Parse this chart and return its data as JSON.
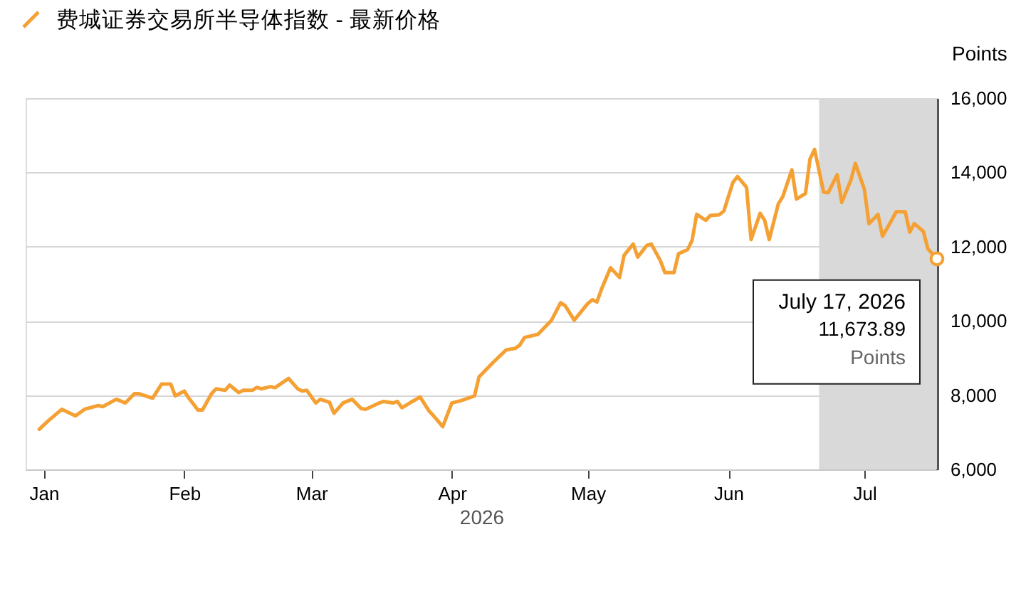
{
  "chart_data": {
    "type": "line",
    "xlabel": "2026",
    "ylabel": "Points",
    "x": [
      "2025-12-31",
      "2026-01-02",
      "2026-01-05",
      "2026-01-08",
      "2026-01-10",
      "2026-01-13",
      "2026-01-14",
      "2026-01-17",
      "2026-01-19",
      "2026-01-21",
      "2026-01-22",
      "2026-01-25",
      "2026-01-27",
      "2026-01-29",
      "2026-01-30",
      "2026-02-01",
      "2026-02-02",
      "2026-02-04",
      "2026-02-05",
      "2026-02-07",
      "2026-02-08",
      "2026-02-10",
      "2026-02-11",
      "2026-02-13",
      "2026-02-14",
      "2026-02-16",
      "2026-02-17",
      "2026-02-18",
      "2026-02-20",
      "2026-02-21",
      "2026-02-24",
      "2026-02-26",
      "2026-02-27",
      "2026-02-28",
      "2026-03-02",
      "2026-03-03",
      "2026-03-05",
      "2026-03-06",
      "2026-03-08",
      "2026-03-10",
      "2026-03-12",
      "2026-03-13",
      "2026-03-16",
      "2026-03-17",
      "2026-03-19",
      "2026-03-20",
      "2026-03-21",
      "2026-03-23",
      "2026-03-25",
      "2026-03-27",
      "2026-03-28",
      "2026-03-30",
      "2026-04-01",
      "2026-04-03",
      "2026-04-06",
      "2026-04-07",
      "2026-04-10",
      "2026-04-13",
      "2026-04-15",
      "2026-04-16",
      "2026-04-17",
      "2026-04-20",
      "2026-04-23",
      "2026-04-25",
      "2026-04-26",
      "2026-04-28",
      "2026-05-01",
      "2026-05-02",
      "2026-05-03",
      "2026-05-04",
      "2026-05-06",
      "2026-05-08",
      "2026-05-09",
      "2026-05-11",
      "2026-05-12",
      "2026-05-14",
      "2026-05-15",
      "2026-05-17",
      "2026-05-18",
      "2026-05-20",
      "2026-05-21",
      "2026-05-23",
      "2026-05-24",
      "2026-05-25",
      "2026-05-27",
      "2026-05-28",
      "2026-05-30",
      "2026-05-31",
      "2026-06-02",
      "2026-06-03",
      "2026-06-05",
      "2026-06-06",
      "2026-06-08",
      "2026-06-09",
      "2026-06-10",
      "2026-06-12",
      "2026-06-13",
      "2026-06-15",
      "2026-06-16",
      "2026-06-18",
      "2026-06-19",
      "2026-06-20",
      "2026-06-22",
      "2026-06-23",
      "2026-06-25",
      "2026-06-26",
      "2026-06-28",
      "2026-06-29",
      "2026-07-01",
      "2026-07-02",
      "2026-07-04",
      "2026-07-05",
      "2026-07-07",
      "2026-07-08",
      "2026-07-10",
      "2026-07-11",
      "2026-07-12",
      "2026-07-14",
      "2026-07-15",
      "2026-07-17"
    ],
    "series": [
      {
        "name": "费城证券交易所半导体指数 - 最新价格",
        "color": "#f5a033",
        "values": [
          7080,
          7310,
          7620,
          7440,
          7620,
          7720,
          7690,
          7890,
          7790,
          8040,
          8040,
          7920,
          8300,
          8300,
          7980,
          8110,
          7920,
          7600,
          7600,
          8040,
          8170,
          8130,
          8270,
          8070,
          8130,
          8130,
          8210,
          8170,
          8230,
          8200,
          8450,
          8170,
          8110,
          8130,
          7790,
          7890,
          7810,
          7510,
          7790,
          7890,
          7640,
          7620,
          7790,
          7830,
          7790,
          7830,
          7660,
          7810,
          7950,
          7570,
          7440,
          7150,
          7790,
          7850,
          7980,
          8490,
          8870,
          9220,
          9260,
          9350,
          9550,
          9640,
          10020,
          10490,
          10410,
          10020,
          10470,
          10570,
          10510,
          10850,
          11430,
          11170,
          11770,
          12070,
          11720,
          12030,
          12070,
          11620,
          11300,
          11300,
          11810,
          11920,
          12170,
          12870,
          12710,
          12840,
          12860,
          12960,
          13730,
          13890,
          13600,
          12190,
          12900,
          12710,
          12190,
          13150,
          13350,
          14070,
          13280,
          13430,
          14360,
          14620,
          13470,
          13450,
          13940,
          13190,
          13790,
          14240,
          13540,
          12620,
          12870,
          12280,
          12710,
          12940,
          12940,
          12390,
          12620,
          12410,
          11940,
          11673.89
        ]
      }
    ],
    "xlim": [
      "2025-12-28",
      "2026-07-17"
    ],
    "ylim": [
      6000,
      16000
    ],
    "xticks": [
      {
        "value": "2026-01-01",
        "label": "Jan"
      },
      {
        "value": "2026-02-01",
        "label": "Feb"
      },
      {
        "value": "2026-03-01",
        "label": "Mar"
      },
      {
        "value": "2026-04-01",
        "label": "Apr"
      },
      {
        "value": "2026-05-01",
        "label": "May"
      },
      {
        "value": "2026-06-01",
        "label": "Jun"
      },
      {
        "value": "2026-07-01",
        "label": "Jul"
      }
    ],
    "yticks": [
      {
        "value": 6000,
        "label": "6,000"
      },
      {
        "value": 8000,
        "label": "8,000"
      },
      {
        "value": 10000,
        "label": "10,000"
      },
      {
        "value": 12000,
        "label": "12,000"
      },
      {
        "value": 14000,
        "label": "14,000"
      },
      {
        "value": 16000,
        "label": "16,000"
      }
    ],
    "grid": "y",
    "legend": "top left",
    "marker": "none",
    "line_style": "solid",
    "bands": [
      {
        "axis": "x",
        "from": "2026-06-21",
        "to": "2026-07-17",
        "color": "#d9d9d9"
      }
    ],
    "annotations": [
      {
        "text": "July 17, 2026\n11,673.89\nPoints",
        "x": "2026-07-17",
        "y": 11673.89
      }
    ]
  }
}
